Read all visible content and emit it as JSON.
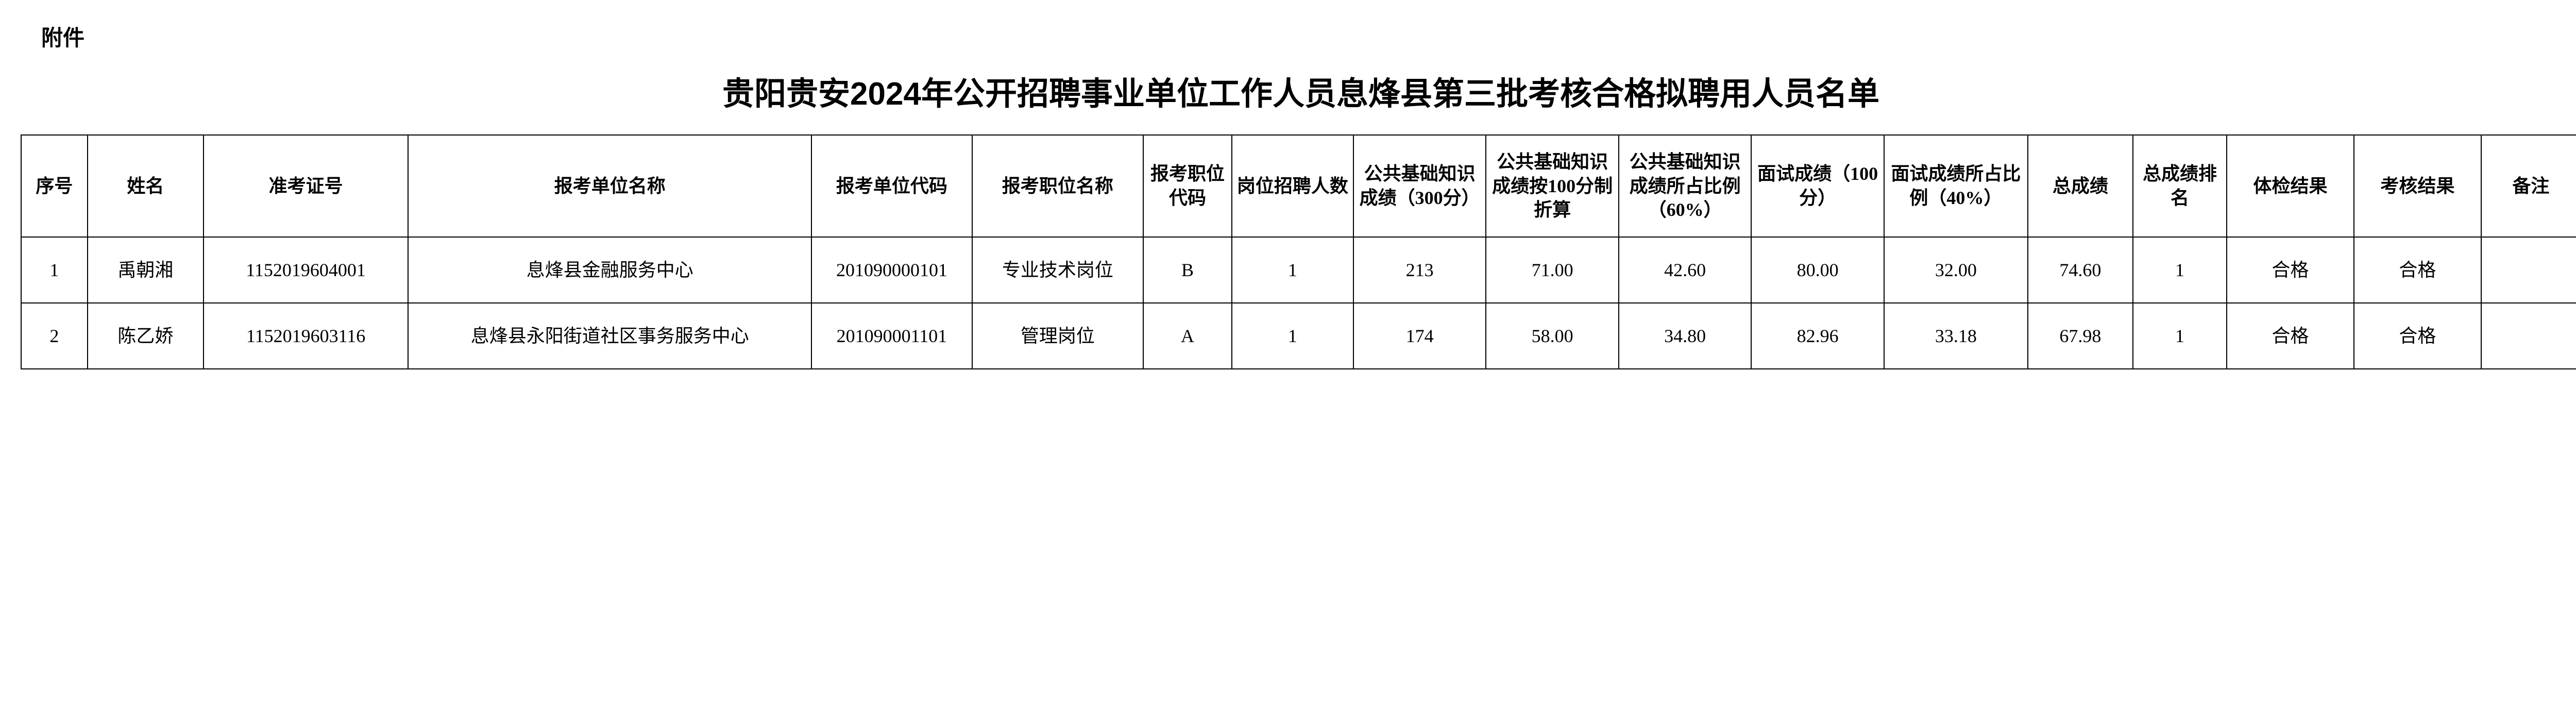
{
  "attachment_label": "附件",
  "title": "贵阳贵安2024年公开招聘事业单位工作人员息烽县第三批考核合格拟聘用人员名单",
  "columns": [
    "序号",
    "姓名",
    "准考证号",
    "报考单位名称",
    "报考单位代码",
    "报考职位名称",
    "报考职位代码",
    "岗位招聘人数",
    "公共基础知识成绩（300分）",
    "公共基础知识成绩按100分制折算",
    "公共基础知识成绩所占比例（60%）",
    "面试成绩（100分）",
    "面试成绩所占比例（40%）",
    "总成绩",
    "总成绩排名",
    "体检结果",
    "考核结果",
    "备注"
  ],
  "rows": [
    {
      "seq": "1",
      "name": "禹朝湘",
      "exam_id": "1152019604001",
      "unit_name": "息烽县金融服务中心",
      "unit_code": "201090000101",
      "position_name": "专业技术岗位",
      "position_code": "B",
      "recruit_count": "1",
      "basic_score": "213",
      "basic_100": "71.00",
      "basic_60": "42.60",
      "interview_score": "80.00",
      "interview_40": "32.00",
      "total_score": "74.60",
      "rank": "1",
      "physical": "合格",
      "assess": "合格",
      "remark": ""
    },
    {
      "seq": "2",
      "name": "陈乙娇",
      "exam_id": "1152019603116",
      "unit_name": "息烽县永阳街道社区事务服务中心",
      "unit_code": "201090001101",
      "position_name": "管理岗位",
      "position_code": "A",
      "recruit_count": "1",
      "basic_score": "174",
      "basic_100": "58.00",
      "basic_60": "34.80",
      "interview_score": "82.96",
      "interview_40": "33.18",
      "total_score": "67.98",
      "rank": "1",
      "physical": "合格",
      "assess": "合格",
      "remark": ""
    }
  ]
}
